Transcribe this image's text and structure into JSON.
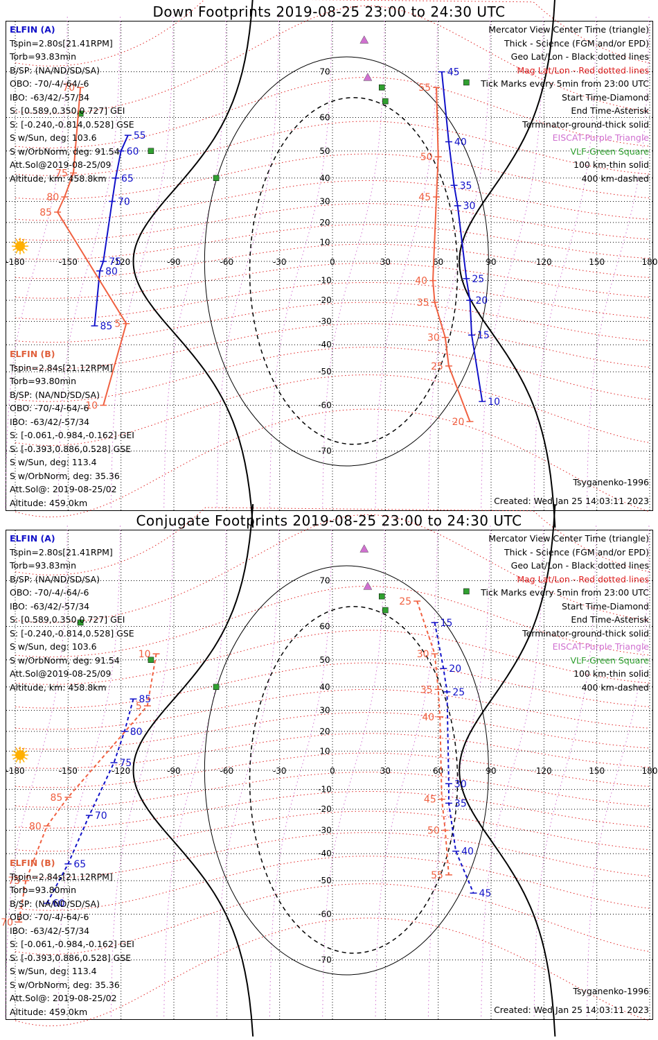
{
  "panels": [
    {
      "id": "down",
      "title": "Down Footprints 2019-08-25 23:00 to 24:30 UTC",
      "elfin_a": {
        "header": "ELFIN (A)",
        "lines": [
          "Tspin=2.80s[21.41RPM]",
          "Torb=93.83min",
          "B/SP: (NA/ND/SD/SA)",
          "OBO: -70/-4/-64/-6",
          "IBO: -63/42/-57/34",
          "S: [0.589,0.350,0.727] GEI",
          "S: [-0.240,-0.814,0.528] GSE",
          "S w/Sun, deg: 103.6",
          "S w/OrbNorm, deg: 91.54",
          "Att.Sol@2019-08-25/09",
          "Altitude, km: 458.8km"
        ]
      },
      "elfin_b": {
        "header": "ELFIN (B)",
        "lines": [
          "Tspin=2.84s[21.12RPM]",
          "Torb=93.80min",
          "B/SP: (NA/ND/SD/SA)",
          "OBO: -70/-4/-64/-6",
          "IBO: -63/42/-57/34",
          "S: [-0.061,-0.984,-0.162] GEI",
          "S: [-0.393,0.886,0.528] GSE",
          "S w/Sun, deg: 113.4",
          "S w/OrbNorm, deg: 35.36",
          "Att.Sol@: 2019-08-25/02",
          "Altitude: 459.0km"
        ]
      },
      "legend": [
        {
          "text": "Mercator View Center Time (triangle)",
          "color": "#000000"
        },
        {
          "text": "Thick - Science (FGM and/or EPD)",
          "color": "#000000"
        },
        {
          "text": "Geo Lat/Lon - Black dotted lines",
          "color": "#000000"
        },
        {
          "text": "Mag Lat/Lon - Red dotted lines",
          "color": "#e02020"
        },
        {
          "text": "Tick Marks every 5min from 23:00 UTC",
          "color": "#000000"
        },
        {
          "text": "Start Time-Diamond",
          "color": "#000000"
        },
        {
          "text": "End Time-Asterisk",
          "color": "#000000"
        },
        {
          "text": "Terminator-ground-thick solid",
          "color": "#000000"
        },
        {
          "text": "EISCAT-Purple Triangle",
          "color": "#d070d0"
        },
        {
          "text": "VLF-Green Square",
          "color": "#30a030"
        },
        {
          "text": "100 km-thin solid",
          "color": "#000000"
        },
        {
          "text": "400 km-dashed",
          "color": "#000000"
        }
      ],
      "credit": "Tsyganenko-1996",
      "created": "Created: Wed Jan 25 14:03:11 2023"
    },
    {
      "id": "conjugate",
      "title": "Conjugate Footprints 2019-08-25 23:00 to 24:30 UTC",
      "elfin_a": {
        "header": "ELFIN (A)",
        "lines": [
          "Tspin=2.80s[21.41RPM]",
          "Torb=93.83min",
          "B/SP: (NA/ND/SD/SA)",
          "OBO: -70/-4/-64/-6",
          "IBO: -63/42/-57/34",
          "S: [0.589,0.350,0.727] GEI",
          "S: [-0.240,-0.814,0.528] GSE",
          "S w/Sun, deg: 103.6",
          "S w/OrbNorm, deg: 91.54",
          "Att.Sol@2019-08-25/09",
          "Altitude, km: 458.8km"
        ]
      },
      "elfin_b": {
        "header": "ELFIN (B)",
        "lines": [
          "Tspin=2.84s[21.12RPM]",
          "Torb=93.80min",
          "B/SP: (NA/ND/SD/SA)",
          "OBO: -70/-4/-64/-6",
          "IBO: -63/42/-57/34",
          "S: [-0.061,-0.984,-0.162] GEI",
          "S: [-0.393,0.886,0.528] GSE",
          "S w/Sun, deg: 113.4",
          "S w/OrbNorm, deg: 35.36",
          "Att.Sol@: 2019-08-25/02",
          "Altitude: 459.0km"
        ]
      },
      "legend": [
        {
          "text": "Mercator View Center Time (triangle)",
          "color": "#000000"
        },
        {
          "text": "Thick - Science (FGM and/or EPD)",
          "color": "#000000"
        },
        {
          "text": "Geo Lat/Lon - Black dotted lines",
          "color": "#000000"
        },
        {
          "text": "Mag Lat/Lon - Red dotted lines",
          "color": "#e02020"
        },
        {
          "text": "Tick Marks every 5min from 23:00 UTC",
          "color": "#000000"
        },
        {
          "text": "Start Time-Diamond",
          "color": "#000000"
        },
        {
          "text": "End Time-Asterisk",
          "color": "#000000"
        },
        {
          "text": "Terminator-ground-thick solid",
          "color": "#000000"
        },
        {
          "text": "EISCAT-Purple Triangle",
          "color": "#d070d0"
        },
        {
          "text": "VLF-Green Square",
          "color": "#30a030"
        },
        {
          "text": "100 km-thin solid",
          "color": "#000000"
        },
        {
          "text": "400 km-dashed",
          "color": "#000000"
        }
      ],
      "credit": "Tsyganenko-1996",
      "created": "Created: Wed Jan 25 14:03:11 2023"
    }
  ],
  "colors": {
    "elfin_a": "#1010c8",
    "elfin_b": "#f06040",
    "mag_grid": "#e02020",
    "geo_grid": "#000000",
    "eiscat": "#d070d0",
    "vlf": "#30a030",
    "sun": "#ffb000"
  },
  "chart_data": [
    {
      "type": "scatter",
      "title": "Down Footprints 2019-08-25 23:00 to 24:30 UTC",
      "xlim": [
        -180,
        180
      ],
      "ylim": [
        -80,
        80
      ],
      "x_ticks": [
        -180,
        -150,
        -120,
        -90,
        -60,
        -30,
        0,
        30,
        60,
        90,
        120,
        150,
        180
      ],
      "x_tick_labels": [
        "-180",
        "-150",
        "-120",
        "-90",
        "-60",
        "-30",
        "0",
        "30",
        "60",
        "90",
        "120",
        "150",
        "180"
      ],
      "y_ticks": [
        70,
        60,
        50,
        40,
        30,
        20,
        10,
        0,
        -10,
        -20,
        -30,
        -40,
        -50,
        -60,
        -70
      ],
      "series": [
        {
          "name": "ELFIN (A)",
          "points": [
            [
              -116,
              55,
              "55"
            ],
            [
              -120,
              50,
              "60"
            ],
            [
              -123,
              40,
              "65"
            ],
            [
              -125,
              30,
              "70"
            ],
            [
              -130,
              0,
              "75"
            ],
            [
              -132,
              -5,
              "80"
            ],
            [
              -135,
              -32,
              "85"
            ],
            [
              62,
              70,
              "45"
            ],
            [
              66,
              53,
              "40"
            ],
            [
              69,
              37,
              "35"
            ],
            [
              71,
              28,
              "30"
            ],
            [
              76,
              -9,
              "25"
            ],
            [
              78,
              -20,
              "20"
            ],
            [
              79,
              -36,
              "15"
            ],
            [
              85,
              -59,
              "10"
            ]
          ]
        },
        {
          "name": "ELFIN (B)",
          "points": [
            [
              -143,
              67,
              "70"
            ],
            [
              -147,
              42,
              "75"
            ],
            [
              -152,
              32,
              "80"
            ],
            [
              -156,
              25,
              "85"
            ],
            [
              -117,
              -31,
              "5"
            ],
            [
              -130,
              -60,
              "10"
            ],
            [
              59,
              67,
              "55"
            ],
            [
              60,
              48,
              "50"
            ],
            [
              59,
              32,
              "45"
            ],
            [
              57,
              -10,
              "40"
            ],
            [
              58,
              -21,
              "35"
            ],
            [
              64,
              -37,
              "30"
            ],
            [
              66,
              -48,
              "25"
            ],
            [
              78,
              -64,
              "20"
            ]
          ]
        }
      ],
      "grid": true
    },
    {
      "type": "scatter",
      "title": "Conjugate Footprints 2019-08-25 23:00 to 24:30 UTC",
      "xlim": [
        -180,
        180
      ],
      "ylim": [
        -80,
        80
      ],
      "x_ticks": [
        -180,
        -150,
        -120,
        -90,
        -60,
        -30,
        0,
        30,
        60,
        90,
        120,
        150,
        180
      ],
      "x_tick_labels": [
        "-180",
        "-150",
        "-120",
        "-90",
        "-60",
        "-30",
        "0",
        "30",
        "60",
        "90",
        "120",
        "150",
        "180"
      ],
      "y_ticks": [
        70,
        60,
        50,
        40,
        30,
        20,
        10,
        0,
        -10,
        -20,
        -30,
        -40,
        -50,
        -60,
        -70
      ],
      "series": [
        {
          "name": "ELFIN (A)",
          "points": [
            [
              58,
              61,
              "15"
            ],
            [
              63,
              47,
              "20"
            ],
            [
              65,
              38,
              "25"
            ],
            [
              66,
              -7,
              "30"
            ],
            [
              66,
              -17,
              "35"
            ],
            [
              70,
              -39,
              "40"
            ],
            [
              80,
              -54,
              "45"
            ],
            [
              -113,
              35,
              "85"
            ],
            [
              -118,
              20,
              "80"
            ],
            [
              -124,
              4,
              "75"
            ],
            [
              -138,
              -23,
              "70"
            ],
            [
              -150,
              -44,
              "65"
            ],
            [
              -162,
              -57,
              "60"
            ]
          ]
        },
        {
          "name": "ELFIN (B)",
          "points": [
            [
              48,
              66,
              "25"
            ],
            [
              58,
              52,
              "30"
            ],
            [
              60,
              39,
              "35"
            ],
            [
              61,
              27,
              "40"
            ],
            [
              62,
              -15,
              "45"
            ],
            [
              64,
              -30,
              "50"
            ],
            [
              66,
              -48,
              "55"
            ],
            [
              -100,
              52,
              "10"
            ],
            [
              -105,
              32,
              "5"
            ],
            [
              -150,
              -14,
              "85"
            ],
            [
              -162,
              -28,
              "80"
            ],
            [
              -174,
              -50,
              "75"
            ],
            [
              -178,
              -62,
              "70"
            ]
          ]
        }
      ],
      "grid": true
    }
  ]
}
